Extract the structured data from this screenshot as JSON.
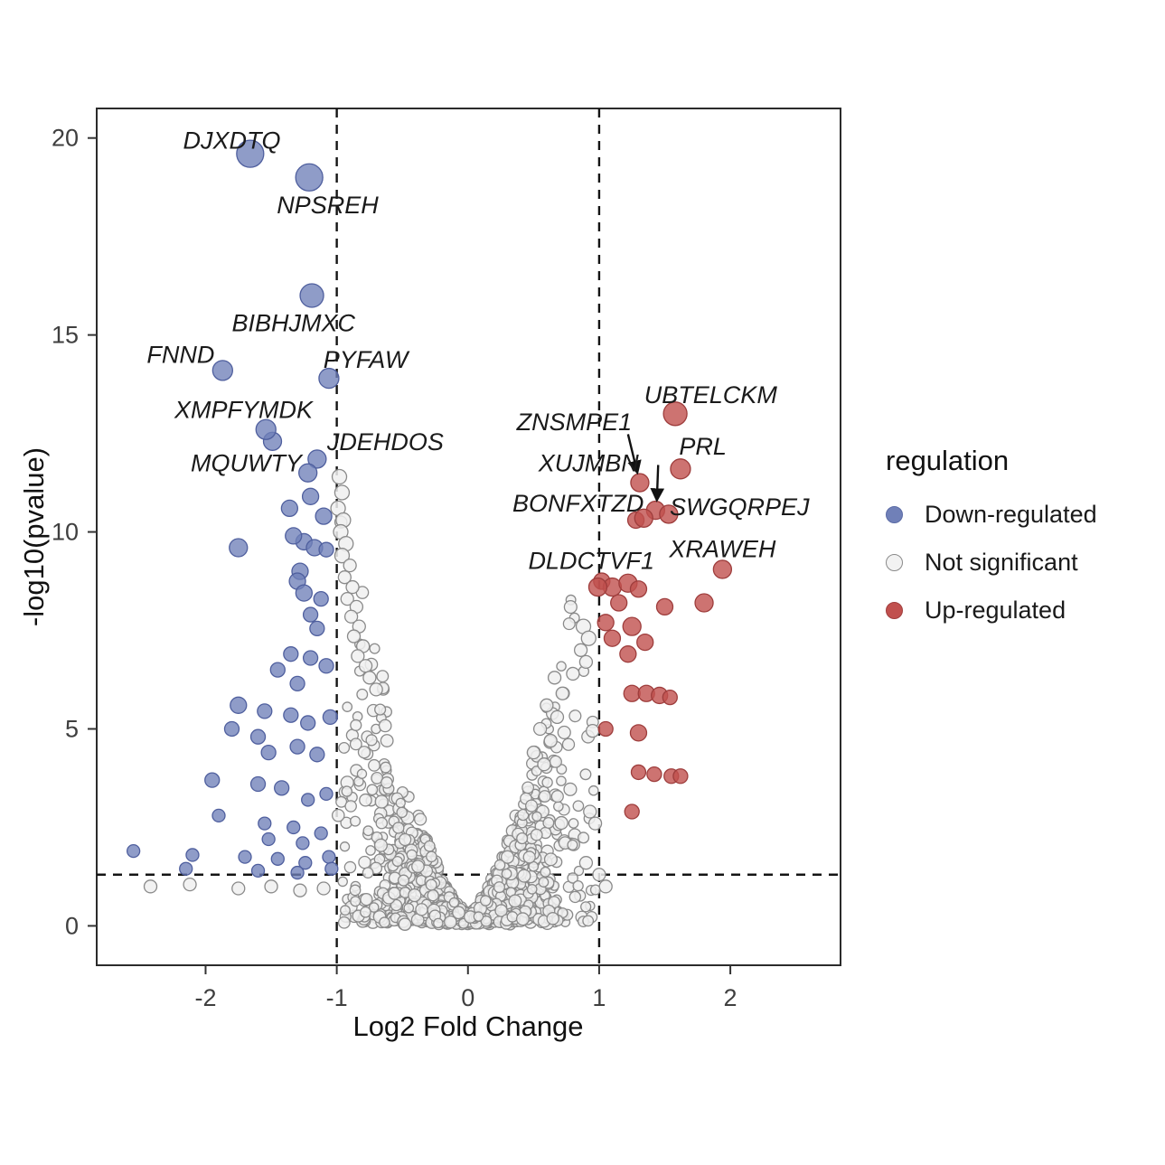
{
  "chart_data": {
    "type": "scatter",
    "variant": "volcano",
    "title": "",
    "xlabel": "Log2 Fold Change",
    "ylabel": "-log10(pvalue)",
    "xlim": [
      -2.83,
      2.84
    ],
    "ylim": [
      -1.0,
      20.75
    ],
    "xticks": [
      -2,
      -1,
      0,
      1,
      2
    ],
    "yticks": [
      0,
      5,
      10,
      15,
      20
    ],
    "grid": false,
    "thresholds": {
      "vlines": [
        -1,
        1
      ],
      "hline": 1.3,
      "line_color": "#141414"
    },
    "legend": {
      "title": "regulation",
      "position": "right",
      "entries": [
        {
          "label": "Down-regulated",
          "fill": "#7080b8",
          "stroke": "#5a6aa5"
        },
        {
          "label": "Not significant",
          "fill": "#f2f2f2",
          "stroke": "#8a8a8a"
        },
        {
          "label": "Up-regulated",
          "fill": "#c1504e",
          "stroke": "#a03e3d"
        }
      ]
    },
    "style": {
      "down": {
        "fill": "#7080b8",
        "stroke": "#4f5f9e",
        "opacity": 0.78
      },
      "up": {
        "fill": "#c1504e",
        "stroke": "#9e3d3c",
        "opacity": 0.8
      },
      "gray": {
        "fill": "#f0f0f0",
        "stroke": "#8a8a8a",
        "opacity": 0.85
      },
      "label_color": "#1a1a1a",
      "axis_text_color": "#3f3f3f",
      "panel_border": "#2b2b2b"
    },
    "labeled_points": [
      {
        "label": "DJXDTQ",
        "group": "down",
        "x": -1.66,
        "y": 19.6,
        "r": 15,
        "lx": -1.8,
        "ly": 19.93
      },
      {
        "label": "NPSREH",
        "group": "down",
        "x": -1.21,
        "y": 19.0,
        "r": 15,
        "lx": -1.07,
        "ly": 18.3
      },
      {
        "label": "BIBHJMXC",
        "group": "down",
        "x": -1.19,
        "y": 16.0,
        "r": 13,
        "lx": -1.33,
        "ly": 15.3
      },
      {
        "label": "FNND",
        "group": "down",
        "x": -1.87,
        "y": 14.1,
        "r": 11,
        "lx": -2.19,
        "ly": 14.5
      },
      {
        "label": "PYFAW",
        "group": "down",
        "x": -1.06,
        "y": 13.9,
        "r": 11,
        "lx": -0.78,
        "ly": 14.37
      },
      {
        "label": "XMPFYMDK",
        "group": "down",
        "x": -1.54,
        "y": 12.6,
        "r": 11,
        "lx": -1.71,
        "ly": 13.1
      },
      {
        "label": "JDEHDOS",
        "group": "down",
        "x": -1.15,
        "y": 11.85,
        "r": 10,
        "lx": -0.63,
        "ly": 12.28
      },
      {
        "label": "MQUWTY",
        "group": "down",
        "x": -1.22,
        "y": 11.5,
        "r": 10,
        "lx": -1.69,
        "ly": 11.75
      },
      {
        "label": "UBTELCKM",
        "group": "up",
        "x": 1.58,
        "y": 13.0,
        "r": 13,
        "lx": 1.85,
        "ly": 13.48
      },
      {
        "label": "PRL",
        "group": "up",
        "x": 1.62,
        "y": 11.6,
        "r": 11,
        "lx": 1.79,
        "ly": 12.17
      },
      {
        "label": "ZNSMPE1",
        "group": "up",
        "x": 1.31,
        "y": 11.25,
        "r": 10,
        "lx": 0.81,
        "ly": 12.79,
        "arrow": {
          "x1": 1.22,
          "y1": 12.48,
          "x2": 1.29,
          "y2": 11.52
        }
      },
      {
        "label": "XUJMBN",
        "group": "up",
        "x": 1.43,
        "y": 10.55,
        "r": 10,
        "lx": 0.92,
        "ly": 11.75,
        "arrow": {
          "x1": 1.45,
          "y1": 11.7,
          "x2": 1.44,
          "y2": 10.82
        }
      },
      {
        "label": "BONFXTZD",
        "group": "up",
        "x": 1.34,
        "y": 10.35,
        "r": 10,
        "lx": 0.84,
        "ly": 10.72
      },
      {
        "label": "SWGQRPEJ",
        "group": "up",
        "x": 1.53,
        "y": 10.45,
        "r": 10,
        "lx": 2.07,
        "ly": 10.63
      },
      {
        "label": "XRAWEH",
        "group": "up",
        "x": 1.94,
        "y": 9.05,
        "r": 10,
        "lx": 1.94,
        "ly": 9.57
      },
      {
        "label": "DLDCTVF1",
        "group": "up",
        "x": 0.99,
        "y": 8.6,
        "r": 10,
        "lx": 0.94,
        "ly": 9.27
      }
    ],
    "down_points": [
      [
        -1.75,
        9.6,
        10
      ],
      [
        -1.25,
        9.75,
        9
      ],
      [
        -1.17,
        9.6,
        9
      ],
      [
        -1.08,
        9.55,
        8
      ],
      [
        -1.28,
        9.0,
        9
      ],
      [
        -1.3,
        8.75,
        9
      ],
      [
        -1.25,
        8.45,
        9
      ],
      [
        -1.12,
        8.3,
        8
      ],
      [
        -1.2,
        7.9,
        8
      ],
      [
        -1.15,
        7.55,
        8
      ],
      [
        -1.35,
        6.9,
        8
      ],
      [
        -1.2,
        6.8,
        8
      ],
      [
        -1.45,
        6.5,
        8
      ],
      [
        -1.08,
        6.6,
        8
      ],
      [
        -1.3,
        6.15,
        8
      ],
      [
        -1.75,
        5.6,
        9
      ],
      [
        -1.55,
        5.45,
        8
      ],
      [
        -1.35,
        5.35,
        8
      ],
      [
        -1.22,
        5.15,
        8
      ],
      [
        -1.05,
        5.3,
        8
      ],
      [
        -1.8,
        5.0,
        8
      ],
      [
        -1.6,
        4.8,
        8
      ],
      [
        -1.52,
        4.4,
        8
      ],
      [
        -1.3,
        4.55,
        8
      ],
      [
        -1.15,
        4.35,
        8
      ],
      [
        -1.95,
        3.7,
        8
      ],
      [
        -1.6,
        3.6,
        8
      ],
      [
        -1.42,
        3.5,
        8
      ],
      [
        -1.22,
        3.2,
        7
      ],
      [
        -1.08,
        3.35,
        7
      ],
      [
        -1.9,
        2.8,
        7
      ],
      [
        -1.55,
        2.6,
        7
      ],
      [
        -1.33,
        2.5,
        7
      ],
      [
        -1.52,
        2.2,
        7
      ],
      [
        -1.26,
        2.1,
        7
      ],
      [
        -1.12,
        2.35,
        7
      ],
      [
        -2.55,
        1.9,
        7
      ],
      [
        -2.1,
        1.8,
        7
      ],
      [
        -1.7,
        1.75,
        7
      ],
      [
        -1.45,
        1.7,
        7
      ],
      [
        -1.24,
        1.6,
        7
      ],
      [
        -2.15,
        1.45,
        7
      ],
      [
        -1.6,
        1.4,
        7
      ],
      [
        -1.3,
        1.35,
        7
      ],
      [
        -1.06,
        1.75,
        7
      ],
      [
        -1.04,
        1.45,
        7
      ],
      [
        -1.1,
        10.4,
        9
      ],
      [
        -1.2,
        10.9,
        9
      ],
      [
        -1.36,
        10.6,
        9
      ],
      [
        -1.33,
        9.9,
        9
      ],
      [
        -1.49,
        12.3,
        10
      ]
    ],
    "up_points": [
      [
        1.02,
        8.75,
        9
      ],
      [
        1.1,
        8.6,
        10
      ],
      [
        1.22,
        8.7,
        10
      ],
      [
        1.3,
        8.55,
        9
      ],
      [
        1.15,
        8.2,
        9
      ],
      [
        1.5,
        8.1,
        9
      ],
      [
        1.8,
        8.2,
        10
      ],
      [
        1.05,
        7.7,
        9
      ],
      [
        1.25,
        7.6,
        10
      ],
      [
        1.1,
        7.3,
        9
      ],
      [
        1.35,
        7.2,
        9
      ],
      [
        1.22,
        6.9,
        9
      ],
      [
        1.25,
        5.9,
        9
      ],
      [
        1.36,
        5.9,
        9
      ],
      [
        1.46,
        5.85,
        9
      ],
      [
        1.54,
        5.8,
        8
      ],
      [
        1.05,
        5.0,
        8
      ],
      [
        1.3,
        4.9,
        9
      ],
      [
        1.3,
        3.9,
        8
      ],
      [
        1.42,
        3.85,
        8
      ],
      [
        1.55,
        3.8,
        8
      ],
      [
        1.62,
        3.8,
        8
      ],
      [
        1.25,
        2.9,
        8
      ],
      [
        1.28,
        10.3,
        9
      ]
    ],
    "gray_points": [
      [
        -0.98,
        11.4,
        8
      ],
      [
        -0.96,
        11.0,
        8
      ],
      [
        -0.99,
        10.6,
        8
      ],
      [
        -0.95,
        10.3,
        8
      ],
      [
        -0.97,
        10.0,
        8
      ],
      [
        -0.93,
        9.7,
        8
      ],
      [
        -0.96,
        9.4,
        8
      ],
      [
        -0.9,
        9.15,
        7
      ],
      [
        -0.94,
        8.85,
        7
      ],
      [
        -0.88,
        8.6,
        7
      ],
      [
        -0.92,
        8.3,
        7
      ],
      [
        -0.85,
        8.1,
        7
      ],
      [
        -0.89,
        7.85,
        7
      ],
      [
        -0.83,
        7.6,
        7
      ],
      [
        -0.87,
        7.35,
        7
      ],
      [
        -0.8,
        7.1,
        7
      ],
      [
        -0.84,
        6.85,
        7
      ],
      [
        -0.78,
        6.6,
        7
      ],
      [
        -0.75,
        6.3,
        7
      ],
      [
        -0.7,
        6.0,
        7
      ],
      [
        0.88,
        7.6,
        8
      ],
      [
        0.92,
        7.3,
        8
      ],
      [
        0.86,
        7.0,
        7
      ],
      [
        0.9,
        6.7,
        7
      ],
      [
        0.8,
        6.4,
        7
      ],
      [
        0.66,
        6.3,
        7
      ],
      [
        0.72,
        5.9,
        7
      ],
      [
        0.6,
        5.6,
        7
      ],
      [
        0.68,
        5.3,
        7
      ],
      [
        0.55,
        5.0,
        7
      ],
      [
        0.63,
        4.7,
        7
      ],
      [
        0.5,
        4.4,
        7
      ],
      [
        0.58,
        4.1,
        7
      ],
      [
        0.95,
        4.95,
        7
      ],
      [
        0.93,
        2.9,
        7
      ],
      [
        0.97,
        2.6,
        7
      ],
      [
        0.9,
        1.6,
        7
      ],
      [
        1.0,
        1.3,
        7
      ],
      [
        -2.42,
        1.0,
        7
      ],
      [
        -2.12,
        1.05,
        7
      ],
      [
        -1.75,
        0.95,
        7
      ],
      [
        -1.5,
        1.0,
        7
      ],
      [
        -1.28,
        0.9,
        7
      ],
      [
        -1.1,
        0.95,
        7
      ],
      [
        1.05,
        1.0,
        7
      ]
    ],
    "background_cloud": {
      "seed": 1337,
      "n": 1300,
      "x_spread": 1.02,
      "y_base": 0.15,
      "y_envelope_coef": 11.5,
      "y_envelope_exp": 1.5,
      "r_min": 5,
      "r_max": 7
    }
  }
}
